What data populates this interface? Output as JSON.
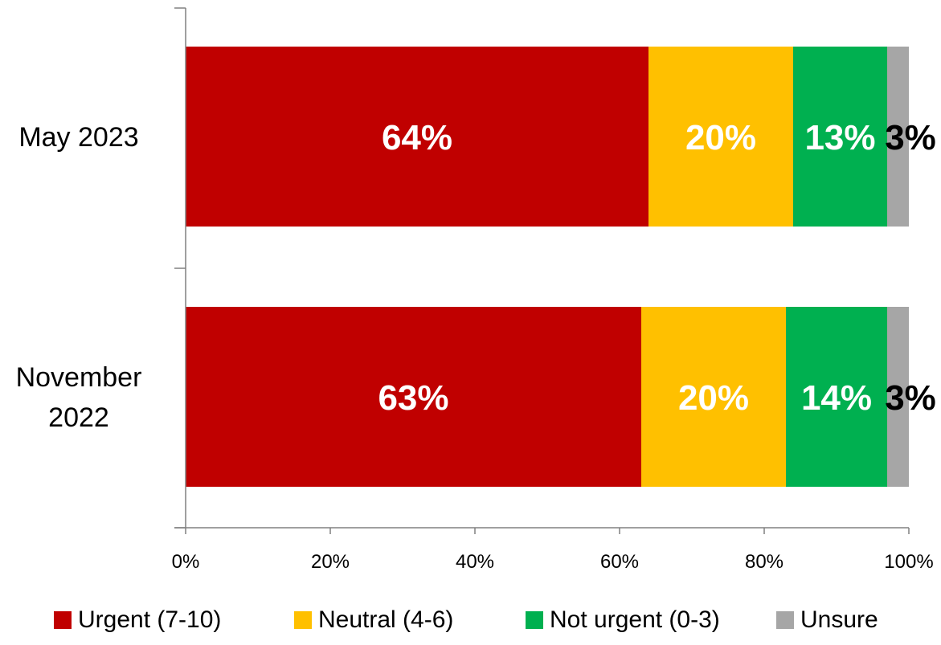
{
  "chart_data": {
    "type": "bar",
    "orientation": "horizontal",
    "stacked": true,
    "normalized": true,
    "categories": [
      "May 2023",
      "November 2022"
    ],
    "series": [
      {
        "name": "Urgent (7-10)",
        "color": "#c00000",
        "label_color": "#ffffff",
        "values": [
          64,
          63
        ],
        "labels": [
          "64%",
          "63%"
        ]
      },
      {
        "name": "Neutral (4-6)",
        "color": "#ffc000",
        "label_color": "#ffffff",
        "values": [
          20,
          20
        ],
        "labels": [
          "20%",
          "20%"
        ]
      },
      {
        "name": "Not urgent (0-3)",
        "color": "#00b050",
        "label_color": "#ffffff",
        "values": [
          13,
          14
        ],
        "labels": [
          "13%",
          "14%"
        ]
      },
      {
        "name": "Unsure",
        "color": "#a6a6a6",
        "label_color": "#000000",
        "values": [
          3,
          3
        ],
        "labels": [
          "3%",
          "3%"
        ]
      }
    ],
    "xlim": [
      0,
      100
    ],
    "x_ticks": [
      "0%",
      "20%",
      "40%",
      "60%",
      "80%",
      "100%"
    ],
    "grid": false,
    "legend_position": "bottom"
  }
}
